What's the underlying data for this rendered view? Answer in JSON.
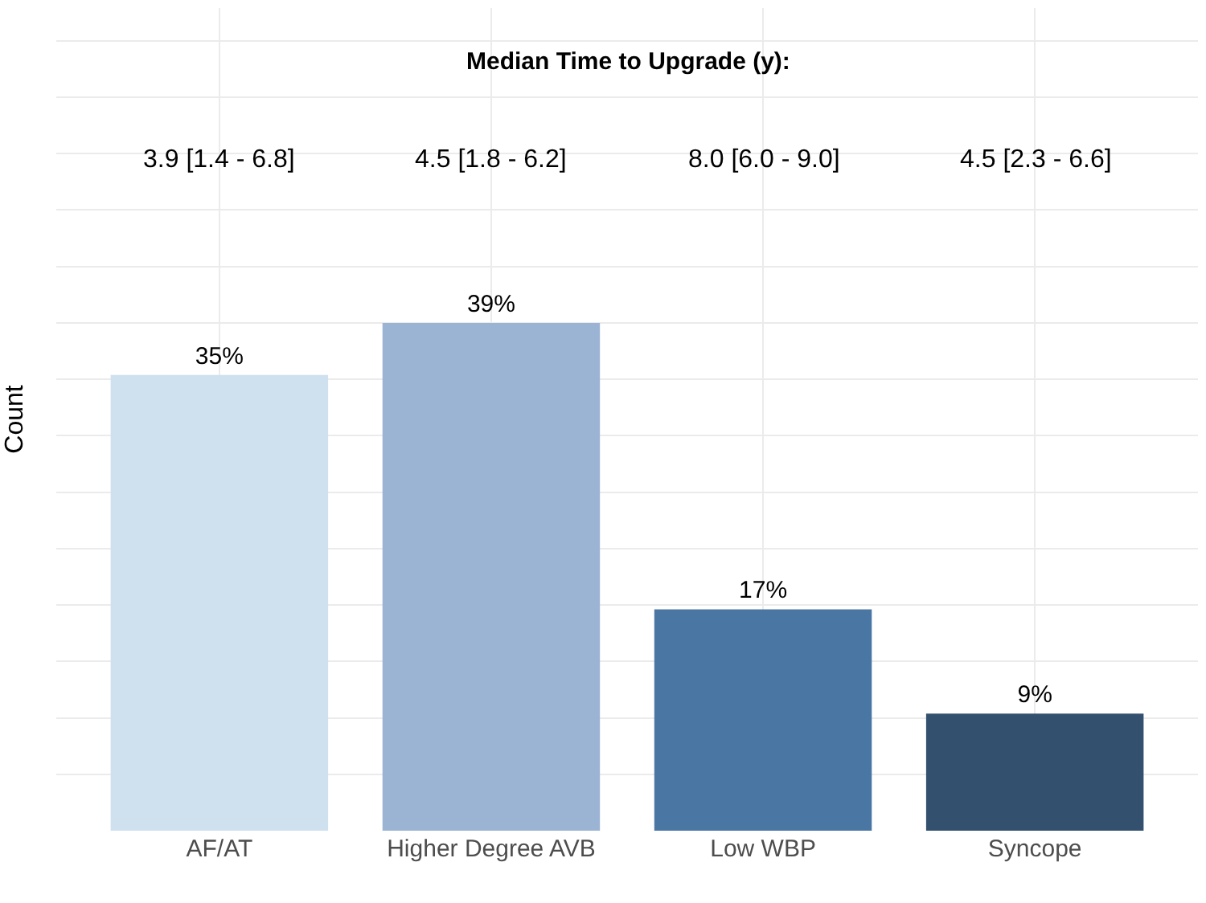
{
  "chart_data": {
    "type": "bar",
    "ylabel": "Count",
    "tick_labels": "x",
    "categories": [
      "AF/AT",
      "Higher Degree AVB",
      "Low WBP",
      "Syncope"
    ],
    "values": [
      35,
      39,
      17,
      9
    ],
    "value_labels": [
      "35%",
      "39%",
      "17%",
      "9%"
    ],
    "colors": [
      "#cfe0ef",
      "#9bb4d4",
      "#4a76a4",
      "#33506f"
    ],
    "annotations": [
      "Median Time to Upgrade (y):",
      "3.9 [1.4 - 6.8]",
      "4.5 [1.8 - 6.2]",
      "8.0 [6.0 - 9.0]",
      "4.5 [2.3 - 6.6]"
    ],
    "grid": true,
    "legend": false
  }
}
